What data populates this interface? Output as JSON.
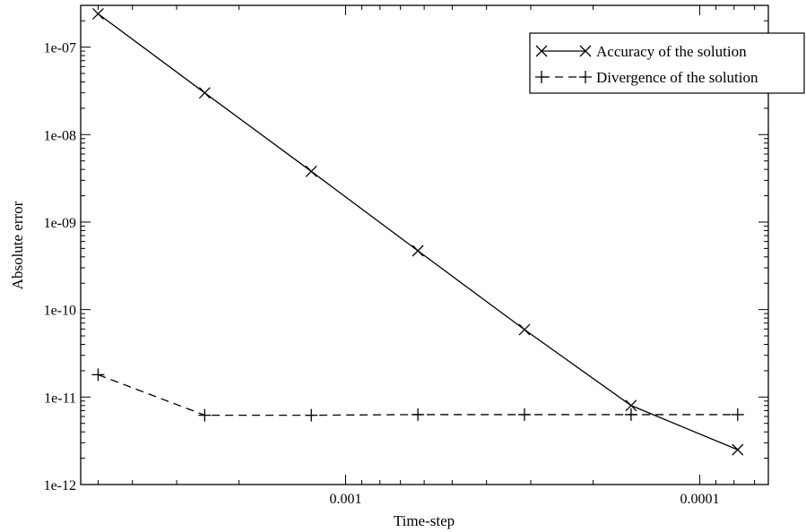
{
  "chart_data": {
    "type": "line",
    "xlabel": "Time-step",
    "ylabel": "Absolute error",
    "x_scale": "log",
    "x_reversed": true,
    "y_scale": "log",
    "xlim": [
      0.0056,
      6.4e-05
    ],
    "ylim": [
      1e-12,
      3e-07
    ],
    "x_ticks": [
      {
        "value": 0.001,
        "label": "0.001"
      },
      {
        "value": 0.0001,
        "label": "0.0001"
      }
    ],
    "y_ticks": [
      {
        "value": 1e-12,
        "label": "1e-12"
      },
      {
        "value": 1e-11,
        "label": "1e-11"
      },
      {
        "value": 1e-10,
        "label": "1e-10"
      },
      {
        "value": 1e-09,
        "label": "1e-09"
      },
      {
        "value": 1e-08,
        "label": "1e-08"
      },
      {
        "value": 1e-07,
        "label": "1e-07"
      }
    ],
    "grid": false,
    "legend_position": "top-right",
    "x": [
      0.005,
      0.0025,
      0.00125,
      0.000625,
      0.0003125,
      0.00015625,
      7.8125e-05
    ],
    "series": [
      {
        "name": "Accuracy of the solution",
        "marker": "x",
        "line": "solid",
        "color": "#000000",
        "values": [
          2.4e-07,
          3e-08,
          3.8e-09,
          4.7e-10,
          5.9e-11,
          8e-12,
          2.5e-12
        ]
      },
      {
        "name": "Divergence of the solution",
        "marker": "plus",
        "line": "dashed",
        "color": "#000000",
        "values": [
          1.8e-11,
          6.2e-12,
          6.2e-12,
          6.3e-12,
          6.3e-12,
          6.3e-12,
          6.3e-12
        ]
      }
    ]
  }
}
